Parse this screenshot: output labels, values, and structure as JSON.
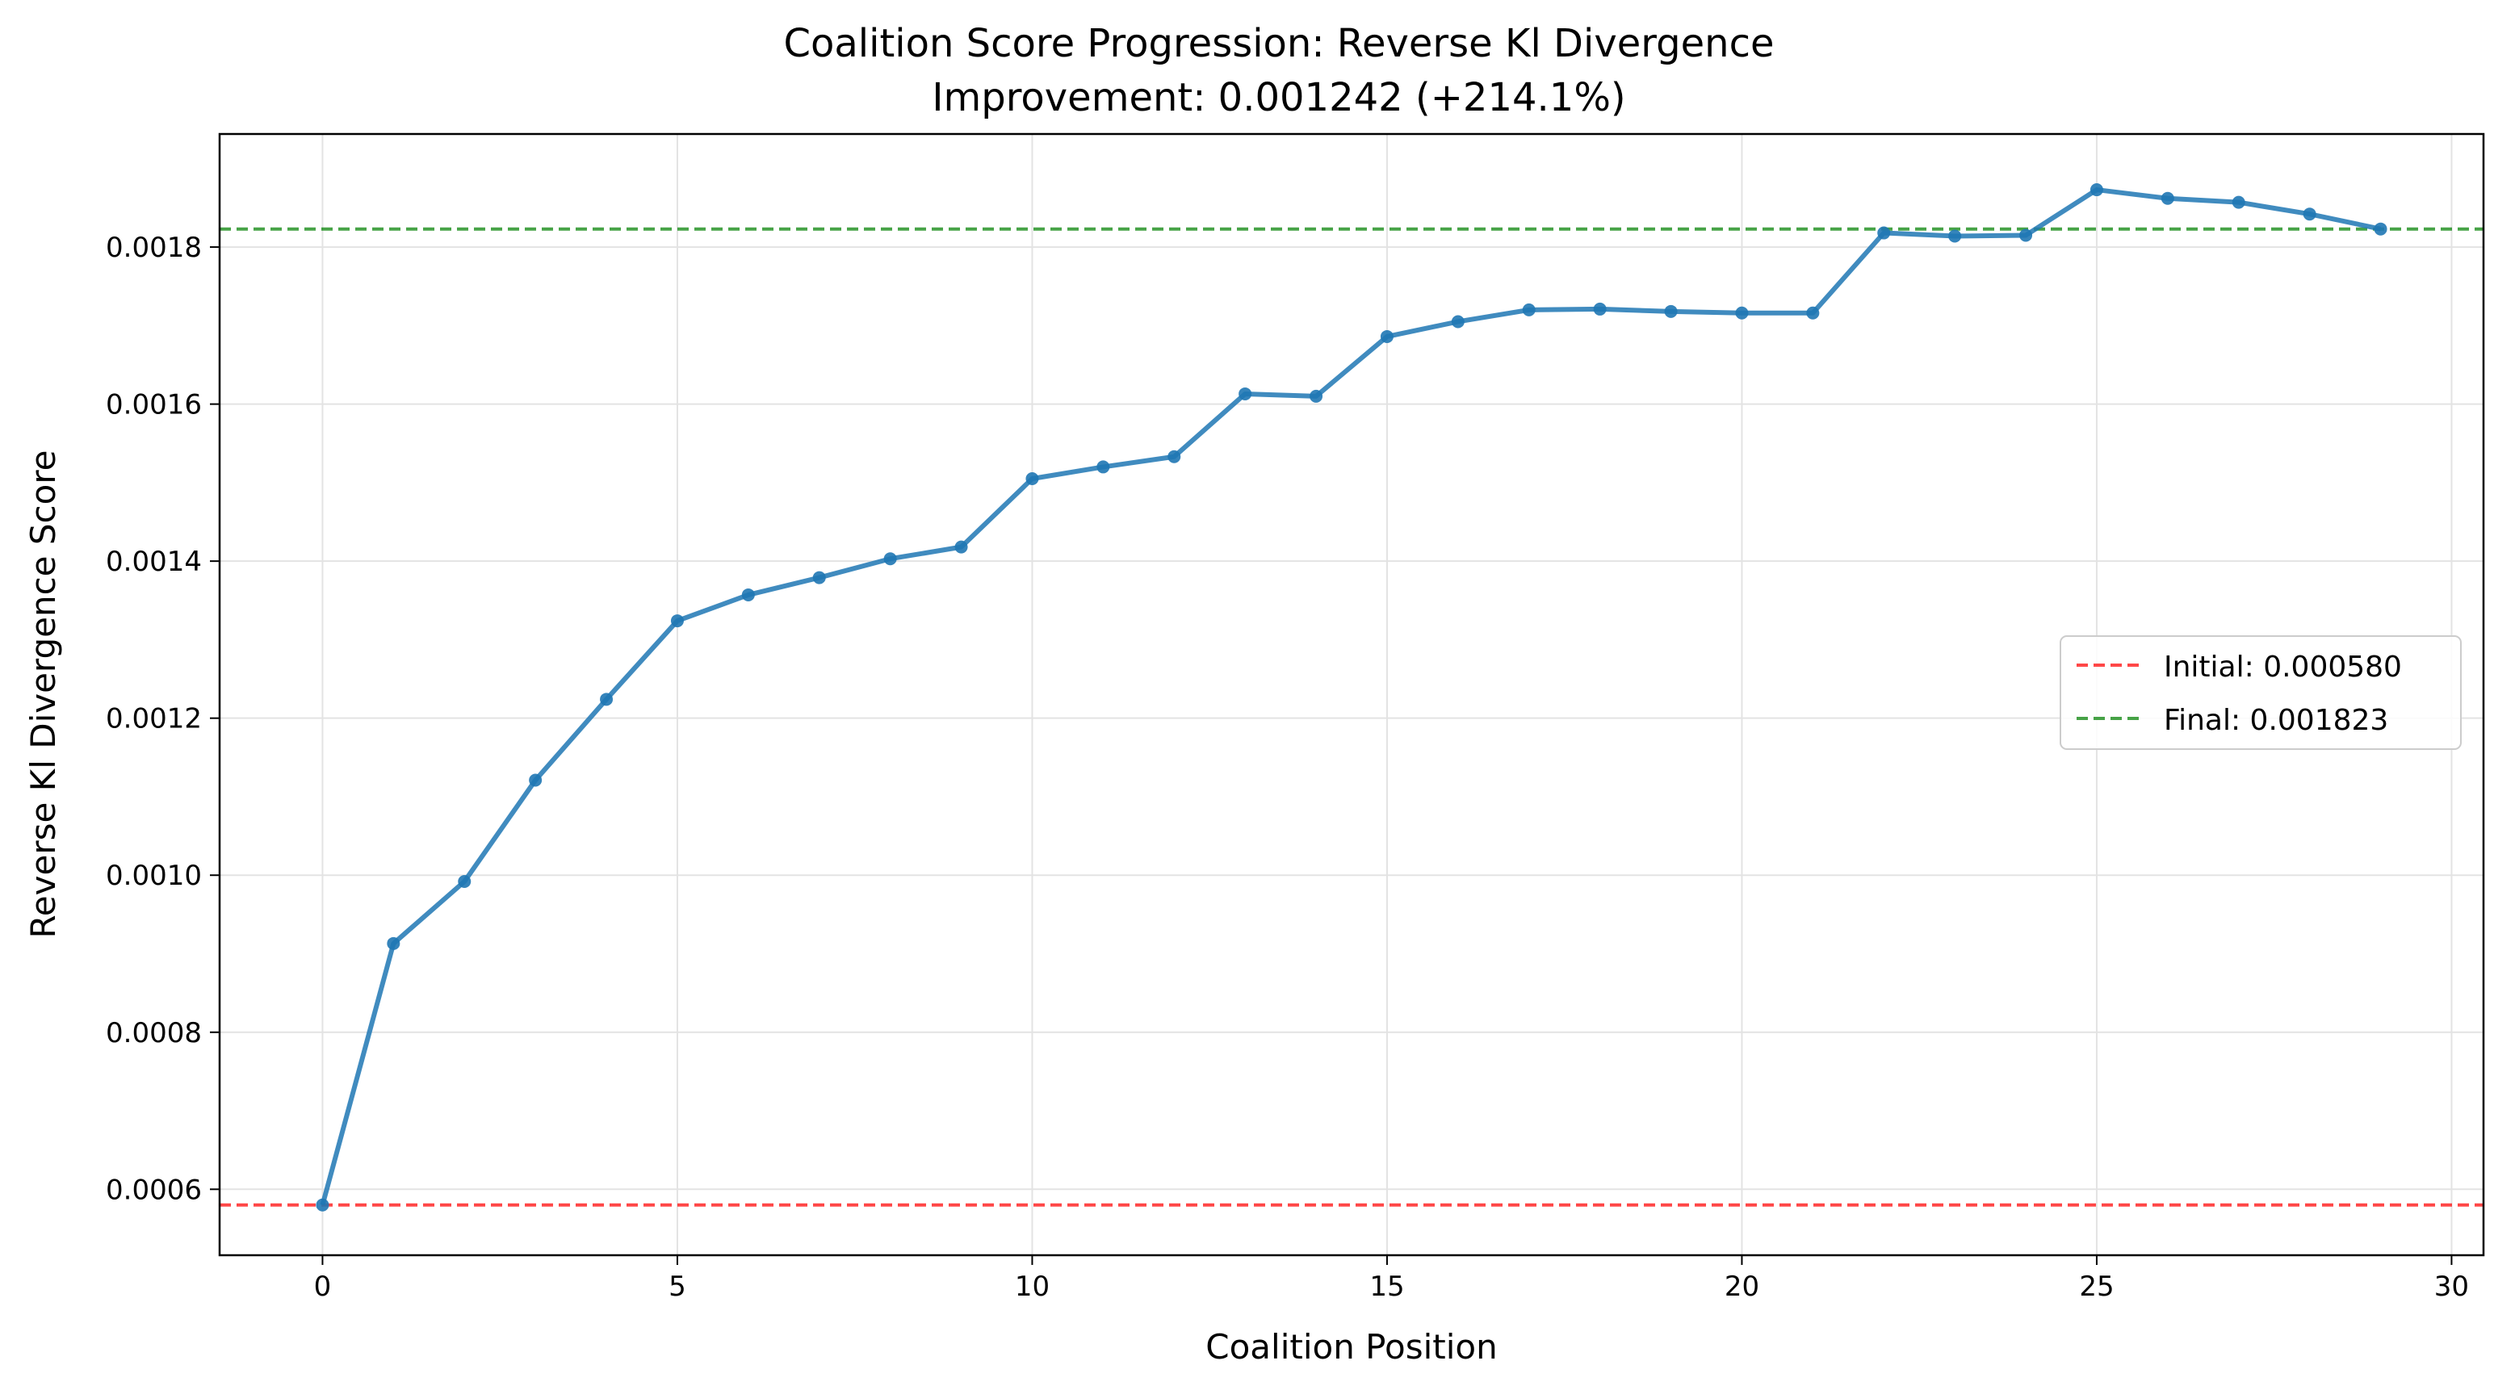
{
  "chart_data": {
    "type": "line",
    "title": "Coalition Score Progression: Reverse Kl Divergence",
    "subtitle": "Improvement: 0.001242 (+214.1%)",
    "xlabel": "Coalition Position",
    "ylabel": "Reverse Kl Divergence Score",
    "xlim": [
      -1.45,
      30.45
    ],
    "ylim": [
      0.000516,
      0.001944
    ],
    "xticks": [
      0,
      5,
      10,
      15,
      20,
      25,
      30
    ],
    "xtick_labels": [
      "0",
      "5",
      "10",
      "15",
      "20",
      "25",
      "30"
    ],
    "yticks": [
      0.0006,
      0.0008,
      0.001,
      0.0012,
      0.0014,
      0.0016,
      0.0018
    ],
    "ytick_labels": [
      "0.0006",
      "0.0008",
      "0.0010",
      "0.0012",
      "0.0014",
      "0.0016",
      "0.0018"
    ],
    "grid": true,
    "legend_position": "center-right",
    "series": [
      {
        "color": "#1f77b4",
        "x": [
          0,
          1,
          2,
          3,
          4,
          5,
          6,
          7,
          8,
          9,
          10,
          11,
          12,
          13,
          14,
          15,
          16,
          17,
          18,
          19,
          20,
          21,
          22,
          23,
          24,
          25,
          26,
          27,
          28,
          29
        ],
        "values": [
          0.00058,
          0.000913,
          0.000992,
          0.001121,
          0.001224,
          0.001324,
          0.001357,
          0.001379,
          0.001403,
          0.001418,
          0.001505,
          0.00152,
          0.001533,
          0.001613,
          0.00161,
          0.001686,
          0.001705,
          0.00172,
          0.001721,
          0.001718,
          0.001716,
          0.001716,
          0.001818,
          0.001814,
          0.001815,
          0.001873,
          0.001862,
          0.001857,
          0.001842,
          0.001823
        ]
      }
    ],
    "reference_lines": [
      {
        "name": "Initial: 0.000580",
        "value": 0.00058,
        "color": "#ff0000",
        "style": "dashed"
      },
      {
        "name": "Final: 0.001823",
        "value": 0.001823,
        "color": "#008000",
        "style": "dashed"
      }
    ]
  }
}
